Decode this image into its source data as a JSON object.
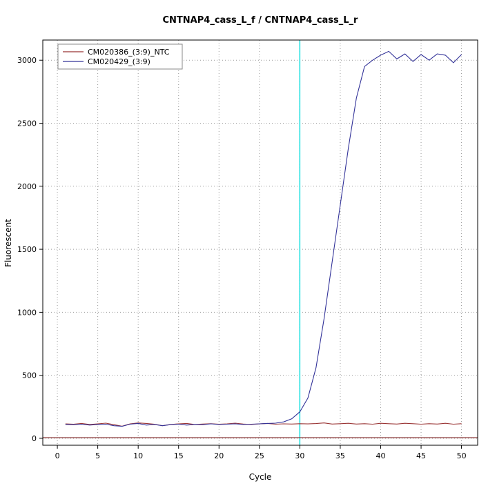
{
  "chart_data": {
    "type": "line",
    "title": "CNTNAP4_cass_L_f / CNTNAP4_cass_L_r",
    "xlabel": "Cycle",
    "ylabel": "Fluorescent",
    "xlim": [
      -1.8,
      52
    ],
    "ylim": [
      -55,
      3160
    ],
    "xticks": [
      0,
      5,
      10,
      15,
      20,
      25,
      30,
      35,
      40,
      45,
      50
    ],
    "yticks": [
      0,
      500,
      1000,
      1500,
      2000,
      2500,
      3000
    ],
    "grid": true,
    "grid_color": "#999999",
    "legend_position": "top-left",
    "x": [
      1,
      2,
      3,
      4,
      5,
      6,
      7,
      8,
      9,
      10,
      11,
      12,
      13,
      14,
      15,
      16,
      17,
      18,
      19,
      20,
      21,
      22,
      23,
      24,
      25,
      26,
      27,
      28,
      29,
      30,
      31,
      32,
      33,
      34,
      35,
      36,
      37,
      38,
      39,
      40,
      41,
      42,
      43,
      44,
      45,
      46,
      47,
      48,
      49,
      50
    ],
    "series": [
      {
        "name": "CM020386_(3:9)_NTC",
        "color": "#993333",
        "values": [
          115,
          112,
          118,
          110,
          115,
          120,
          108,
          96,
          114,
          122,
          118,
          112,
          100,
          110,
          115,
          118,
          110,
          113,
          116,
          112,
          115,
          120,
          113,
          110,
          114,
          118,
          112,
          115,
          113,
          116,
          114,
          117,
          122,
          113,
          116,
          119,
          113,
          116,
          112,
          119,
          116,
          113,
          119,
          116,
          112,
          116,
          113,
          119,
          112,
          116
        ]
      },
      {
        "name": "CM020429_(3:9)",
        "color": "#333399",
        "values": [
          110,
          108,
          112,
          105,
          110,
          112,
          100,
          95,
          112,
          118,
          105,
          110,
          100,
          108,
          112,
          105,
          110,
          108,
          115,
          110,
          112,
          115,
          110,
          112,
          115,
          118,
          120,
          130,
          155,
          210,
          320,
          560,
          950,
          1400,
          1850,
          2300,
          2700,
          2950,
          3000,
          3040,
          3070,
          3010,
          3050,
          2990,
          3045,
          3000,
          3050,
          3040,
          2980,
          3045
        ]
      }
    ],
    "threshold_line": {
      "y": 5,
      "color": "#7a1a1a"
    },
    "vline": {
      "x": 30,
      "color": "#00dddd"
    }
  }
}
